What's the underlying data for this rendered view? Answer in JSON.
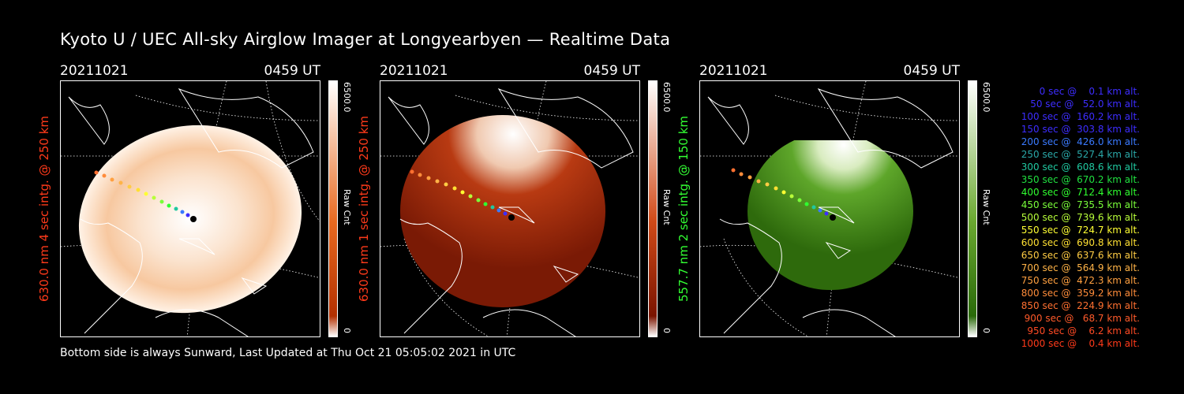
{
  "title": "Kyoto U / UEC All-sky Airglow Imager at Longyearbyen — Realtime Data",
  "footer": "Bottom side is always Sunward, Last Updated at Thu Oct 21 05:05:02 2021 in UTC",
  "panels": [
    {
      "date": "20211021",
      "time": "0459 UT",
      "ylabel": "630.0 nm 4 sec intg. @ 250 km",
      "ylabel_color": "#ff3a1a",
      "cbar_max": "6500.0",
      "cbar_unit": "Raw Cnt",
      "cbar_min": "0",
      "cmap_low": "#b33000",
      "cmap_high": "#ffffff",
      "image_color": "#fbe6d4"
    },
    {
      "date": "20211021",
      "time": "0459 UT",
      "ylabel": "630.0 nm 1 sec intg. @ 250 km",
      "ylabel_color": "#ff3a1a",
      "cbar_max": "6500.0",
      "cbar_unit": "Raw Cnt",
      "cbar_min": "0",
      "cmap_low": "#7a1400",
      "cmap_high": "#ffffff",
      "image_color": "#8a1c06"
    },
    {
      "date": "20211021",
      "time": "0459 UT",
      "ylabel": "557.7 nm 2 sec intg. @ 150 km",
      "ylabel_color": "#33ff33",
      "cbar_max": "6500.0",
      "cbar_unit": "Raw Cnt",
      "cbar_min": "0",
      "cmap_low": "#2a6a0a",
      "cmap_high": "#ffffff",
      "image_color": "#3f8c16"
    }
  ],
  "legend": [
    {
      "text": "   0 sec @    0.1 km alt.",
      "color": "#3d2dff"
    },
    {
      "text": "  50 sec @   52.0 km alt.",
      "color": "#3d2dff"
    },
    {
      "text": " 100 sec @  160.2 km alt.",
      "color": "#3d2dff"
    },
    {
      "text": " 150 sec @  303.8 km alt.",
      "color": "#3d2dff"
    },
    {
      "text": " 200 sec @  426.0 km alt.",
      "color": "#3a7aff"
    },
    {
      "text": " 250 sec @  527.4 km alt.",
      "color": "#2aa8a8"
    },
    {
      "text": " 300 sec @  608.6 km alt.",
      "color": "#20c8a0"
    },
    {
      "text": " 350 sec @  670.2 km alt.",
      "color": "#20e040"
    },
    {
      "text": " 400 sec @  712.4 km alt.",
      "color": "#30ff30"
    },
    {
      "text": " 450 sec @  735.5 km alt.",
      "color": "#7aff3a"
    },
    {
      "text": " 500 sec @  739.6 km alt.",
      "color": "#b8ff3a"
    },
    {
      "text": " 550 sec @  724.7 km alt.",
      "color": "#ffff33"
    },
    {
      "text": " 600 sec @  690.8 km alt.",
      "color": "#ffe033"
    },
    {
      "text": " 650 sec @  637.6 km alt.",
      "color": "#ffcc44"
    },
    {
      "text": " 700 sec @  564.9 km alt.",
      "color": "#ffb347"
    },
    {
      "text": " 750 sec @  472.3 km alt.",
      "color": "#ffa040"
    },
    {
      "text": " 800 sec @  359.2 km alt.",
      "color": "#ff8c3a"
    },
    {
      "text": " 850 sec @  224.9 km alt.",
      "color": "#ff7030"
    },
    {
      "text": " 900 sec @   68.7 km alt.",
      "color": "#ff5a2a"
    },
    {
      "text": " 950 sec @    6.2 km alt.",
      "color": "#ff4a24"
    },
    {
      "text": "1000 sec @    0.4 km alt.",
      "color": "#ff3a1a"
    }
  ]
}
